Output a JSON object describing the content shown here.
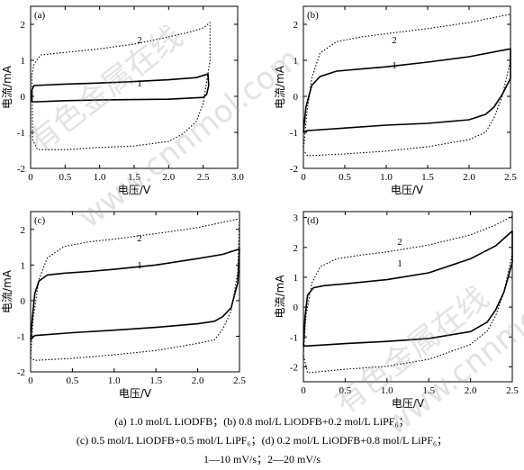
{
  "chart_data": [
    {
      "type": "line",
      "panel_label": "(a)",
      "xlabel": "电压/V",
      "ylabel": "电流/mA",
      "xlim": [
        0,
        3.0
      ],
      "ylim": [
        -2,
        2.5
      ],
      "xticks": [
        "0",
        "0.5",
        "1.0",
        "1.5",
        "2.0",
        "2.5",
        "3.0"
      ],
      "yticks": [
        "2",
        "1",
        "0",
        "-1",
        "-2"
      ],
      "series": [
        {
          "name": "1",
          "style": "solid",
          "points": [
            [
              0.02,
              0.18
            ],
            [
              0.05,
              0.3
            ],
            [
              0.5,
              0.34
            ],
            [
              1.0,
              0.37
            ],
            [
              1.5,
              0.41
            ],
            [
              2.0,
              0.46
            ],
            [
              2.4,
              0.52
            ],
            [
              2.57,
              0.62
            ],
            [
              2.58,
              0.3
            ],
            [
              2.55,
              0.05
            ],
            [
              2.5,
              -0.03
            ],
            [
              2.0,
              -0.08
            ],
            [
              1.5,
              -0.09
            ],
            [
              1.0,
              -0.1
            ],
            [
              0.5,
              -0.12
            ],
            [
              0.1,
              -0.15
            ],
            [
              0.02,
              -0.15
            ],
            [
              0.02,
              0.18
            ]
          ]
        },
        {
          "name": "2",
          "style": "dotted",
          "points": [
            [
              0.02,
              0.6
            ],
            [
              0.05,
              0.9
            ],
            [
              0.15,
              1.15
            ],
            [
              0.5,
              1.22
            ],
            [
              1.0,
              1.32
            ],
            [
              1.5,
              1.45
            ],
            [
              2.0,
              1.65
            ],
            [
              2.3,
              1.78
            ],
            [
              2.5,
              1.9
            ],
            [
              2.6,
              2.05
            ],
            [
              2.6,
              1.0
            ],
            [
              2.5,
              -0.2
            ],
            [
              2.4,
              -0.7
            ],
            [
              2.2,
              -1.05
            ],
            [
              2.0,
              -1.25
            ],
            [
              1.5,
              -1.38
            ],
            [
              1.0,
              -1.42
            ],
            [
              0.5,
              -1.48
            ],
            [
              0.1,
              -1.48
            ],
            [
              0.03,
              -1.2
            ],
            [
              0.02,
              0.6
            ]
          ]
        }
      ]
    },
    {
      "type": "line",
      "panel_label": "(b)",
      "xlabel": "电压/V",
      "ylabel": "电流/mA",
      "xlim": [
        0,
        2.5
      ],
      "ylim": [
        -2,
        2.5
      ],
      "xticks": [
        "0",
        "0.5",
        "1.0",
        "1.5",
        "2.0",
        "2.5"
      ],
      "yticks": [
        "2",
        "1",
        "0",
        "-1",
        "-2"
      ],
      "series": [
        {
          "name": "1",
          "style": "solid",
          "points": [
            [
              0.0,
              -1.0
            ],
            [
              0.03,
              -0.3
            ],
            [
              0.1,
              0.3
            ],
            [
              0.2,
              0.55
            ],
            [
              0.4,
              0.7
            ],
            [
              0.7,
              0.76
            ],
            [
              1.0,
              0.82
            ],
            [
              1.5,
              0.95
            ],
            [
              2.0,
              1.1
            ],
            [
              2.5,
              1.32
            ],
            [
              2.5,
              0.5
            ],
            [
              2.4,
              0.05
            ],
            [
              2.3,
              -0.3
            ],
            [
              2.2,
              -0.5
            ],
            [
              2.0,
              -0.65
            ],
            [
              1.5,
              -0.75
            ],
            [
              1.0,
              -0.8
            ],
            [
              0.5,
              -0.88
            ],
            [
              0.05,
              -0.95
            ],
            [
              0.0,
              -1.0
            ]
          ]
        },
        {
          "name": "2",
          "style": "dotted",
          "points": [
            [
              0.0,
              -1.5
            ],
            [
              0.04,
              -0.5
            ],
            [
              0.1,
              0.5
            ],
            [
              0.2,
              1.2
            ],
            [
              0.4,
              1.52
            ],
            [
              0.7,
              1.65
            ],
            [
              1.0,
              1.74
            ],
            [
              1.5,
              1.88
            ],
            [
              2.0,
              2.05
            ],
            [
              2.5,
              2.28
            ],
            [
              2.5,
              1.0
            ],
            [
              2.4,
              0.0
            ],
            [
              2.3,
              -0.6
            ],
            [
              2.2,
              -1.0
            ],
            [
              2.0,
              -1.2
            ],
            [
              1.5,
              -1.4
            ],
            [
              1.0,
              -1.52
            ],
            [
              0.5,
              -1.6
            ],
            [
              0.05,
              -1.65
            ],
            [
              0.0,
              -1.5
            ]
          ]
        }
      ]
    },
    {
      "type": "line",
      "panel_label": "(c)",
      "xlabel": "电压/V",
      "ylabel": "电流/mA",
      "xlim": [
        0,
        2.5
      ],
      "ylim": [
        -2,
        2.5
      ],
      "xticks": [
        "0",
        "0.5",
        "1.0",
        "1.5",
        "2.0",
        "2.5"
      ],
      "yticks": [
        "2",
        "1",
        "0",
        "-1",
        "-2"
      ],
      "series": [
        {
          "name": "1",
          "style": "solid",
          "points": [
            [
              0.0,
              -1.1
            ],
            [
              0.02,
              -0.5
            ],
            [
              0.05,
              0.2
            ],
            [
              0.1,
              0.55
            ],
            [
              0.2,
              0.72
            ],
            [
              0.4,
              0.77
            ],
            [
              0.7,
              0.82
            ],
            [
              1.0,
              0.88
            ],
            [
              1.5,
              1.0
            ],
            [
              2.0,
              1.18
            ],
            [
              2.3,
              1.3
            ],
            [
              2.5,
              1.45
            ],
            [
              2.48,
              0.5
            ],
            [
              2.4,
              -0.2
            ],
            [
              2.3,
              -0.45
            ],
            [
              2.2,
              -0.58
            ],
            [
              2.0,
              -0.65
            ],
            [
              1.5,
              -0.75
            ],
            [
              1.0,
              -0.83
            ],
            [
              0.5,
              -0.9
            ],
            [
              0.05,
              -0.98
            ],
            [
              0.0,
              -1.1
            ]
          ]
        },
        {
          "name": "2",
          "style": "dotted",
          "points": [
            [
              0.0,
              -1.6
            ],
            [
              0.03,
              -0.5
            ],
            [
              0.1,
              0.6
            ],
            [
              0.2,
              1.2
            ],
            [
              0.4,
              1.52
            ],
            [
              0.7,
              1.65
            ],
            [
              1.0,
              1.73
            ],
            [
              1.5,
              1.88
            ],
            [
              2.0,
              2.05
            ],
            [
              2.5,
              2.3
            ],
            [
              2.48,
              0.8
            ],
            [
              2.4,
              -0.3
            ],
            [
              2.3,
              -0.8
            ],
            [
              2.2,
              -1.1
            ],
            [
              2.0,
              -1.2
            ],
            [
              1.5,
              -1.4
            ],
            [
              1.0,
              -1.52
            ],
            [
              0.5,
              -1.62
            ],
            [
              0.05,
              -1.68
            ],
            [
              0.0,
              -1.6
            ]
          ]
        }
      ]
    },
    {
      "type": "line",
      "panel_label": "(d)",
      "xlabel": "电压/V",
      "ylabel": "电流/mA",
      "xlim": [
        0,
        2.5
      ],
      "ylim": [
        -2.5,
        3.2
      ],
      "xticks": [
        "0",
        "0.5",
        "1.0",
        "1.5",
        "2.0",
        "2.5"
      ],
      "yticks": [
        "3",
        "2",
        "1",
        "0",
        "-1",
        "-2"
      ],
      "series": [
        {
          "name": "1",
          "style": "solid",
          "points": [
            [
              0.0,
              -1.3
            ],
            [
              0.02,
              -0.3
            ],
            [
              0.05,
              0.4
            ],
            [
              0.12,
              0.65
            ],
            [
              0.25,
              0.72
            ],
            [
              0.5,
              0.78
            ],
            [
              1.0,
              0.92
            ],
            [
              1.5,
              1.15
            ],
            [
              2.0,
              1.62
            ],
            [
              2.3,
              2.05
            ],
            [
              2.5,
              2.55
            ],
            [
              2.5,
              1.5
            ],
            [
              2.4,
              0.5
            ],
            [
              2.3,
              -0.1
            ],
            [
              2.2,
              -0.5
            ],
            [
              2.0,
              -0.82
            ],
            [
              1.5,
              -1.05
            ],
            [
              1.0,
              -1.15
            ],
            [
              0.5,
              -1.22
            ],
            [
              0.05,
              -1.3
            ],
            [
              0.0,
              -1.3
            ]
          ]
        },
        {
          "name": "2",
          "style": "dotted",
          "points": [
            [
              0.0,
              -1.6
            ],
            [
              0.03,
              -0.3
            ],
            [
              0.1,
              0.8
            ],
            [
              0.2,
              1.35
            ],
            [
              0.4,
              1.62
            ],
            [
              0.7,
              1.75
            ],
            [
              1.0,
              1.85
            ],
            [
              1.5,
              2.08
            ],
            [
              2.0,
              2.42
            ],
            [
              2.3,
              2.75
            ],
            [
              2.5,
              3.05
            ],
            [
              2.5,
              1.8
            ],
            [
              2.4,
              0.5
            ],
            [
              2.3,
              -0.3
            ],
            [
              2.2,
              -0.8
            ],
            [
              2.0,
              -1.25
            ],
            [
              1.5,
              -1.75
            ],
            [
              1.0,
              -1.98
            ],
            [
              0.5,
              -2.08
            ],
            [
              0.05,
              -2.2
            ],
            [
              0.0,
              -1.6
            ]
          ]
        }
      ]
    }
  ],
  "caption": {
    "line1": "(a) 1.0 mol/L LiODFB；(b) 0.8 mol/L LiODFB+0.2 mol/L LiPF₆；",
    "line2": "(c) 0.5 mol/L LiODFB+0.5 mol/L LiPF₆；(d) 0.2 mol/L LiODFB+0.8 mol/L LiPF₆；",
    "line3": "1—10 mV/s；2—20 mV/s"
  },
  "watermark": {
    "text1": "有色金属在线",
    "text2": "www.cnnmol.com",
    "color": "#969696"
  }
}
